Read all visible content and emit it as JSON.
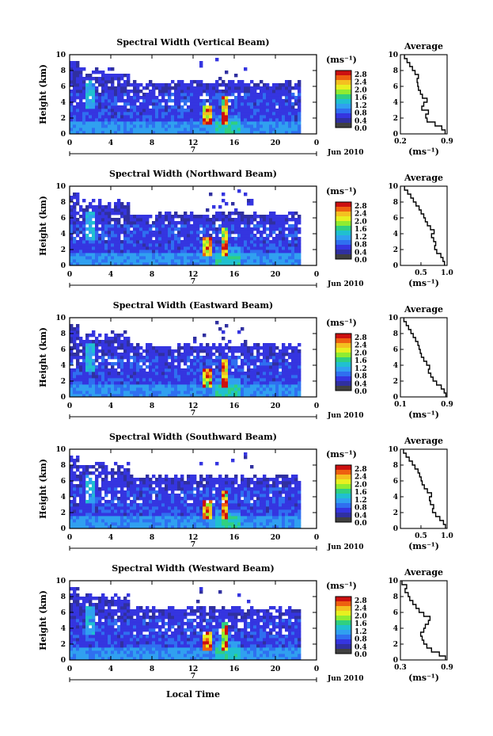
{
  "figure": {
    "xlabel_bottom": "Local Time",
    "date_label": "Jun 2010",
    "date_marker": "7",
    "ylabel": "Height (km)",
    "unit_label": "(ms⁻¹)",
    "avg_title": "Average",
    "avg_xlabel": "(ms⁻¹)"
  },
  "colorbar": {
    "labels": [
      "2.8",
      "2.4",
      "2.0",
      "1.6",
      "1.2",
      "0.8",
      "0.4",
      "0.0"
    ],
    "colors": [
      "#cc1010",
      "#ee6010",
      "#f4c020",
      "#e8f020",
      "#90ec30",
      "#30d080",
      "#20c0d0",
      "#30a0f0",
      "#2f6ff0",
      "#3535e0",
      "#3030a0",
      "#404040"
    ]
  },
  "chart_data": [
    {
      "type": "heatmap",
      "title": "Spectral Width (Vertical Beam)",
      "xlabel": "",
      "ylabel": "Height (km)",
      "xlim": [
        0,
        24
      ],
      "ylim": [
        0,
        10
      ],
      "xticks": [
        "0",
        "4",
        "8",
        "12",
        "16",
        "20",
        "0"
      ],
      "yticks": [
        "0",
        "2",
        "4",
        "6",
        "8",
        "10"
      ],
      "colorbar": {
        "label": "(ms⁻¹)",
        "range": [
          0.0,
          2.8
        ]
      },
      "average": {
        "title": "Average",
        "xlabel": "(ms⁻¹)",
        "xlim": [
          0.2,
          0.9
        ],
        "xticks": [
          "0.2",
          "0.9"
        ],
        "height": [
          0,
          0.5,
          1,
          1.5,
          2,
          2.5,
          3,
          3.5,
          4,
          4.5,
          5,
          5.5,
          6,
          6.5,
          7,
          7.5,
          8,
          8.5,
          9,
          9.5,
          10
        ],
        "width": [
          0.87,
          0.82,
          0.72,
          0.6,
          0.58,
          0.62,
          0.52,
          0.55,
          0.6,
          0.53,
          0.5,
          0.47,
          0.46,
          0.45,
          0.47,
          0.42,
          0.38,
          0.34,
          0.3,
          0.26,
          0.22
        ]
      }
    },
    {
      "type": "heatmap",
      "title": "Spectral Width (Northward Beam)",
      "xlabel": "",
      "ylabel": "Height (km)",
      "xlim": [
        0,
        24
      ],
      "ylim": [
        0,
        10
      ],
      "xticks": [
        "0",
        "4",
        "8",
        "12",
        "16",
        "20",
        "0"
      ],
      "yticks": [
        "0",
        "2",
        "4",
        "6",
        "8",
        "10"
      ],
      "colorbar": {
        "label": "(ms⁻¹)",
        "range": [
          0.0,
          2.8
        ]
      },
      "average": {
        "title": "Average",
        "xlabel": "(ms⁻¹)",
        "xlim": [
          0.1,
          1.0
        ],
        "xticks": [
          "0.5",
          "1.0"
        ],
        "height": [
          0,
          0.5,
          1,
          1.5,
          2,
          2.5,
          3,
          3.5,
          4,
          4.5,
          5,
          5.5,
          6,
          6.5,
          7,
          7.5,
          8,
          8.5,
          9,
          9.5,
          10
        ],
        "width": [
          0.95,
          0.92,
          0.88,
          0.8,
          0.76,
          0.78,
          0.74,
          0.7,
          0.75,
          0.68,
          0.62,
          0.58,
          0.55,
          0.5,
          0.46,
          0.4,
          0.35,
          0.3,
          0.24,
          0.18,
          0.13
        ]
      }
    },
    {
      "type": "heatmap",
      "title": "Spectral Width (Eastward Beam)",
      "xlabel": "",
      "ylabel": "Height (km)",
      "xlim": [
        0,
        24
      ],
      "ylim": [
        0,
        10
      ],
      "xticks": [
        "0",
        "4",
        "8",
        "12",
        "16",
        "20",
        "0"
      ],
      "yticks": [
        "0",
        "2",
        "4",
        "6",
        "8",
        "10"
      ],
      "colorbar": {
        "label": "(ms⁻¹)",
        "range": [
          0.0,
          2.8
        ]
      },
      "average": {
        "title": "Average",
        "xlabel": "(ms⁻¹)",
        "xlim": [
          0.1,
          0.9
        ],
        "xticks": [
          "0.1",
          "0.9"
        ],
        "height": [
          0,
          0.5,
          1,
          1.5,
          2,
          2.5,
          3,
          3.5,
          4,
          4.5,
          5,
          5.5,
          6,
          6.5,
          7,
          7.5,
          8,
          8.5,
          9,
          9.5,
          10
        ],
        "width": [
          0.88,
          0.85,
          0.8,
          0.72,
          0.66,
          0.62,
          0.58,
          0.6,
          0.55,
          0.5,
          0.46,
          0.44,
          0.42,
          0.4,
          0.36,
          0.32,
          0.28,
          0.24,
          0.2,
          0.16,
          0.12
        ]
      }
    },
    {
      "type": "heatmap",
      "title": "Spectral Width (Southward Beam)",
      "xlabel": "",
      "ylabel": "Height (km)",
      "xlim": [
        0,
        24
      ],
      "ylim": [
        0,
        10
      ],
      "xticks": [
        "0",
        "4",
        "8",
        "12",
        "16",
        "20",
        "0"
      ],
      "yticks": [
        "0",
        "2",
        "4",
        "6",
        "8",
        "10"
      ],
      "colorbar": {
        "label": "(ms⁻¹)",
        "range": [
          0.0,
          2.8
        ]
      },
      "average": {
        "title": "Average",
        "xlabel": "(ms⁻¹)",
        "xlim": [
          0.1,
          1.0
        ],
        "xticks": [
          "0.5",
          "1.0"
        ],
        "height": [
          0,
          0.5,
          1,
          1.5,
          2,
          2.5,
          3,
          3.5,
          4,
          4.5,
          5,
          5.5,
          6,
          6.5,
          7,
          7.5,
          8,
          8.5,
          9,
          9.5,
          10
        ],
        "width": [
          0.97,
          0.93,
          0.86,
          0.78,
          0.72,
          0.74,
          0.68,
          0.66,
          0.7,
          0.62,
          0.56,
          0.52,
          0.5,
          0.47,
          0.44,
          0.38,
          0.33,
          0.27,
          0.21,
          0.16,
          0.12
        ]
      }
    },
    {
      "type": "heatmap",
      "title": "Spectral Width (Westward Beam)",
      "xlabel": "Local Time",
      "ylabel": "Height (km)",
      "xlim": [
        0,
        24
      ],
      "ylim": [
        0,
        10
      ],
      "xticks": [
        "0",
        "4",
        "8",
        "12",
        "16",
        "20",
        "0"
      ],
      "yticks": [
        "0",
        "2",
        "4",
        "6",
        "8",
        "10"
      ],
      "colorbar": {
        "label": "(ms⁻¹)",
        "range": [
          0.0,
          2.8
        ]
      },
      "average": {
        "title": "Average",
        "xlabel": "(ms⁻¹)",
        "xlim": [
          0.3,
          0.9
        ],
        "xticks": [
          "0.3",
          "0.9"
        ],
        "height": [
          0,
          0.5,
          1,
          1.5,
          2,
          2.5,
          3,
          3.5,
          4,
          4.5,
          5,
          5.5,
          6,
          6.5,
          7,
          7.5,
          8,
          8.5,
          9,
          9.5,
          10
        ],
        "width": [
          0.88,
          0.8,
          0.7,
          0.64,
          0.6,
          0.58,
          0.56,
          0.6,
          0.62,
          0.66,
          0.68,
          0.6,
          0.54,
          0.5,
          0.46,
          0.42,
          0.4,
          0.36,
          0.38,
          0.32,
          0.34
        ]
      }
    }
  ]
}
